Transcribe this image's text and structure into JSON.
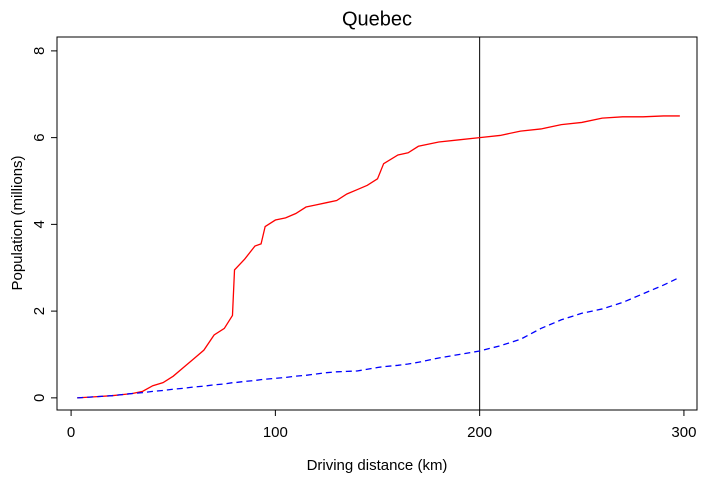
{
  "chart_data": {
    "type": "line",
    "title": "Quebec",
    "x_label": "Driving distance (km)",
    "y_label": "Population (millions)",
    "x": [
      3,
      10,
      20,
      30,
      35,
      40,
      45,
      50,
      55,
      60,
      65,
      70,
      75,
      79,
      80,
      85,
      90,
      93,
      95,
      100,
      105,
      110,
      115,
      120,
      125,
      130,
      135,
      140,
      145,
      150,
      153,
      160,
      165,
      170,
      180,
      190,
      200,
      210,
      220,
      230,
      240,
      250,
      260,
      270,
      280,
      290,
      298
    ],
    "series": [
      {
        "color": "#ff0000",
        "dash": "solid",
        "values": [
          0,
          0.02,
          0.05,
          0.1,
          0.15,
          0.28,
          0.35,
          0.5,
          0.7,
          0.9,
          1.1,
          1.45,
          1.6,
          1.9,
          2.95,
          3.2,
          3.5,
          3.55,
          3.95,
          4.1,
          4.15,
          4.25,
          4.4,
          4.45,
          4.5,
          4.55,
          4.7,
          4.8,
          4.9,
          5.05,
          5.4,
          5.6,
          5.65,
          5.8,
          5.9,
          5.95,
          6.0,
          6.05,
          6.15,
          6.2,
          6.3,
          6.35,
          6.45,
          6.48,
          6.48,
          6.5,
          6.5
        ]
      },
      {
        "color": "#0000ff",
        "dash": "dashed",
        "values": [
          0,
          0.02,
          0.05,
          0.1,
          0.12,
          0.15,
          0.17,
          0.2,
          0.22,
          0.25,
          0.27,
          0.3,
          0.32,
          0.35,
          0.35,
          0.38,
          0.4,
          0.42,
          0.43,
          0.45,
          0.47,
          0.5,
          0.52,
          0.55,
          0.58,
          0.6,
          0.61,
          0.62,
          0.66,
          0.7,
          0.72,
          0.75,
          0.78,
          0.82,
          0.92,
          1.0,
          1.08,
          1.2,
          1.35,
          1.6,
          1.8,
          1.95,
          2.05,
          2.2,
          2.4,
          2.6,
          2.78
        ]
      }
    ],
    "vlines": [
      200
    ],
    "xlim": [
      -6.9,
      306.4
    ],
    "xticks": [
      0,
      100,
      200,
      300
    ],
    "ylim": [
      -0.28,
      8.32
    ],
    "yticks": [
      0,
      2,
      4,
      6,
      8
    ]
  }
}
